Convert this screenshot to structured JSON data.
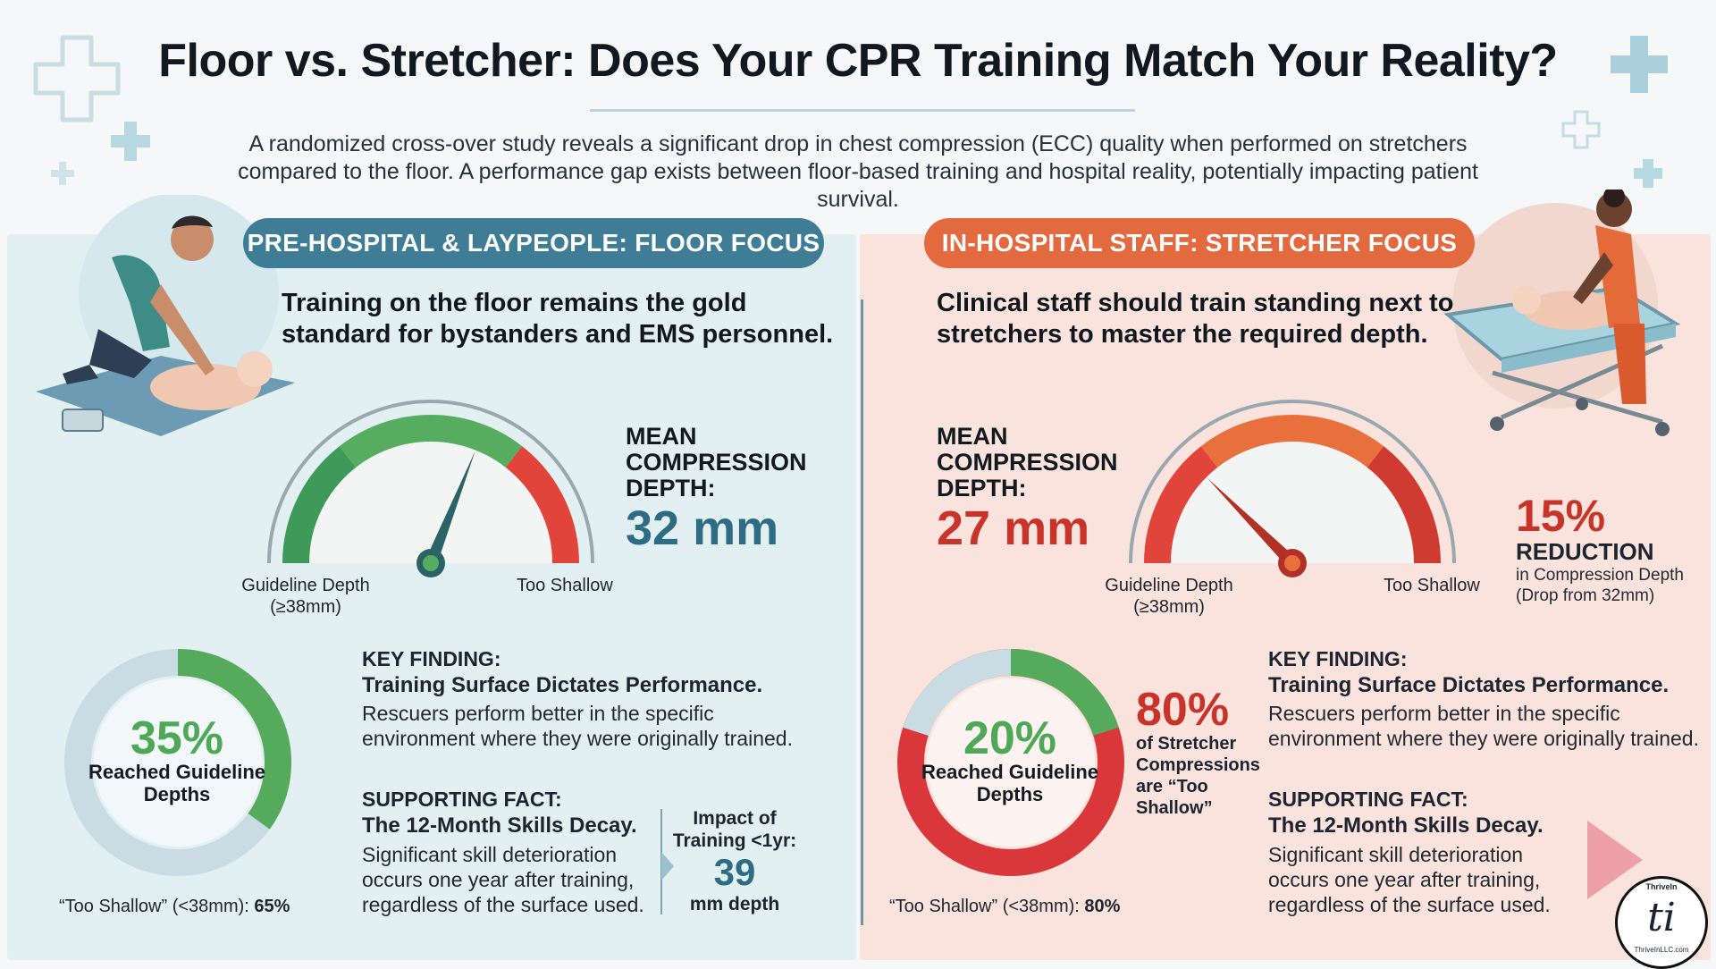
{
  "header": {
    "title": "Floor vs. Stretcher: Does Your CPR Training Match Your Reality?",
    "subtitle": "A randomized cross-over study reveals a significant drop in chest compression (ECC) quality when performed on stretchers compared to the floor. A performance gap exists between floor-based training and hospital reality, potentially impacting patient survival."
  },
  "colors": {
    "accent_blue": "#3f7d97",
    "accent_orange": "#e26a3e",
    "good_green": "#4ea857",
    "alert_red": "#c8342a"
  },
  "left": {
    "pill": "PRE-HOSPITAL & LAYPEOPLE: FLOOR FOCUS",
    "lead": "Training on the floor remains the gold standard for bystanders and EMS personnel.",
    "metric_label": "MEAN COMPRESSION DEPTH:",
    "metric_value": "32 mm",
    "gauge_fraction": 0.62,
    "gauge_left_label": "Guideline Depth (≥38mm)",
    "gauge_right_label": "Too Shallow",
    "donut_value": 0.35,
    "donut_pct": "35%",
    "donut_label": "Reached Guideline Depths",
    "shallow_caption": "“Too Shallow” (<38mm): ",
    "shallow_value": "65%",
    "key_head": "KEY FINDING:",
    "key_title": "Training Surface Dictates Performance.",
    "key_body": "Rescuers perform better in the specific environment where they were originally trained.",
    "support_head": "SUPPORTING FACT:",
    "support_title": "The 12-Month Skills Decay.",
    "support_body": "Significant skill deterioration occurs one year after training, regardless of the surface used.",
    "impact_label": "Impact of Training <1yr:",
    "impact_value": "39",
    "impact_unit": "mm depth",
    "icon": "cpr-floor-illustration"
  },
  "right": {
    "pill": "IN-HOSPITAL STAFF: STRETCHER FOCUS",
    "lead": "Clinical staff should train standing next to stretchers to master the required depth.",
    "metric_label": "MEAN COMPRESSION DEPTH:",
    "metric_value": "27 mm",
    "gauge_fraction": 0.25,
    "gauge_left_label": "Guideline Depth (≥38mm)",
    "gauge_right_label": "Too Shallow",
    "reduction_value": "15%",
    "reduction_label": "REDUCTION",
    "reduction_sub": "in Compression Depth (Drop from 32mm)",
    "donut_value": 0.2,
    "donut_pct": "20%",
    "donut_label": "Reached Guideline Depths",
    "stat_value": "80%",
    "stat_label": "of Stretcher Compressions are “Too Shallow”",
    "shallow_caption": "“Too Shallow” (<38mm): ",
    "shallow_value": "80%",
    "key_head": "KEY FINDING:",
    "key_title": "Training Surface Dictates Performance.",
    "key_body": "Rescuers perform better in the specific environment where they were originally trained.",
    "support_head": "SUPPORTING FACT:",
    "support_title": "The 12-Month Skills Decay.",
    "support_body": "Significant skill deterioration occurs one year after training, regardless of the surface used.",
    "icon": "cpr-stretcher-illustration"
  },
  "logo": {
    "top_text": "ThriveIn",
    "mark": "ti",
    "bottom_text": "ThriveInLLC.com"
  }
}
